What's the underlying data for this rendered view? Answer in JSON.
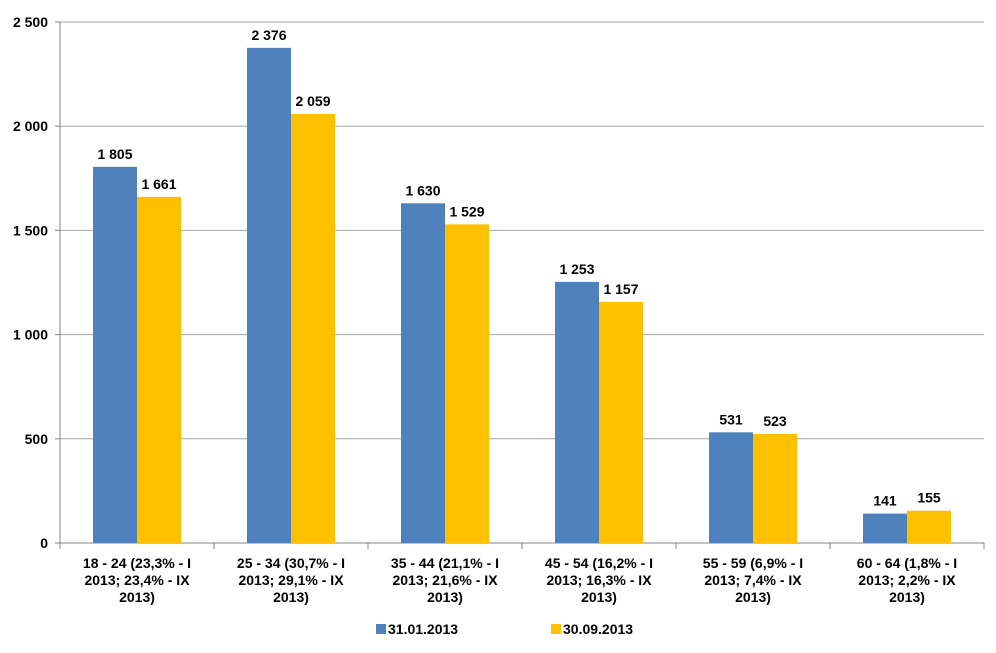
{
  "chart_data": {
    "type": "bar",
    "categories": [
      [
        "18 - 24 (23,3%  - I",
        "2013; 23,4%  - IX",
        "2013)"
      ],
      [
        "25 - 34 (30,7%  - I",
        "2013; 29,1%  - IX",
        "2013)"
      ],
      [
        "35 - 44 (21,1%  - I",
        "2013; 21,6%  - IX",
        "2013)"
      ],
      [
        "45 - 54 (16,2%  - I",
        "2013; 16,3%  - IX",
        "2013)"
      ],
      [
        "55 - 59 (6,9%  - I",
        "2013; 7,4%  - IX",
        "2013)"
      ],
      [
        "60 - 64 (1,8%  - I",
        "2013; 2,2%  - IX",
        "2013)"
      ]
    ],
    "series": [
      {
        "name": "31.01.2013",
        "color": "#4F81BD",
        "values": [
          1805,
          2376,
          1630,
          1253,
          531,
          141
        ],
        "labels": [
          "1 805",
          "2 376",
          "1 630",
          "1 253",
          "531",
          "141"
        ]
      },
      {
        "name": "30.09.2013",
        "color": "#FFC000",
        "values": [
          1661,
          2059,
          1529,
          1157,
          523,
          155
        ],
        "labels": [
          "1 661",
          "2 059",
          "1 529",
          "1 157",
          "523",
          "155"
        ]
      }
    ],
    "yticks": [
      0,
      500,
      1000,
      1500,
      2000,
      2500
    ],
    "ytick_labels": [
      "0",
      "500",
      "1 000",
      "1 500",
      "2 000",
      "2 500"
    ],
    "ylim": [
      0,
      2500
    ],
    "grid": true,
    "legend_position": "bottom"
  }
}
